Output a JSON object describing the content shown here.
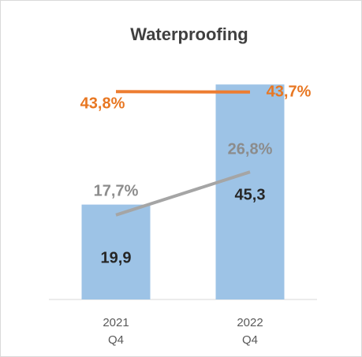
{
  "chart_data": {
    "type": "bar",
    "title": "Waterproofing",
    "categories": [
      [
        "2021",
        "Q4"
      ],
      [
        "2022",
        "Q4"
      ]
    ],
    "series": [
      {
        "type": "bar",
        "color": "#9dc3e6",
        "values": [
          19.9,
          45.3
        ],
        "value_labels": [
          "19,9",
          "45,3"
        ]
      },
      {
        "type": "line",
        "color": "#ed7d31",
        "values": [
          43.8,
          43.7
        ],
        "value_labels": [
          "43,8%",
          "43,7%"
        ]
      },
      {
        "type": "line",
        "color": "#a5a5a5",
        "values": [
          17.7,
          26.8
        ],
        "value_labels": [
          "17,7%",
          "26,8%"
        ]
      }
    ]
  }
}
